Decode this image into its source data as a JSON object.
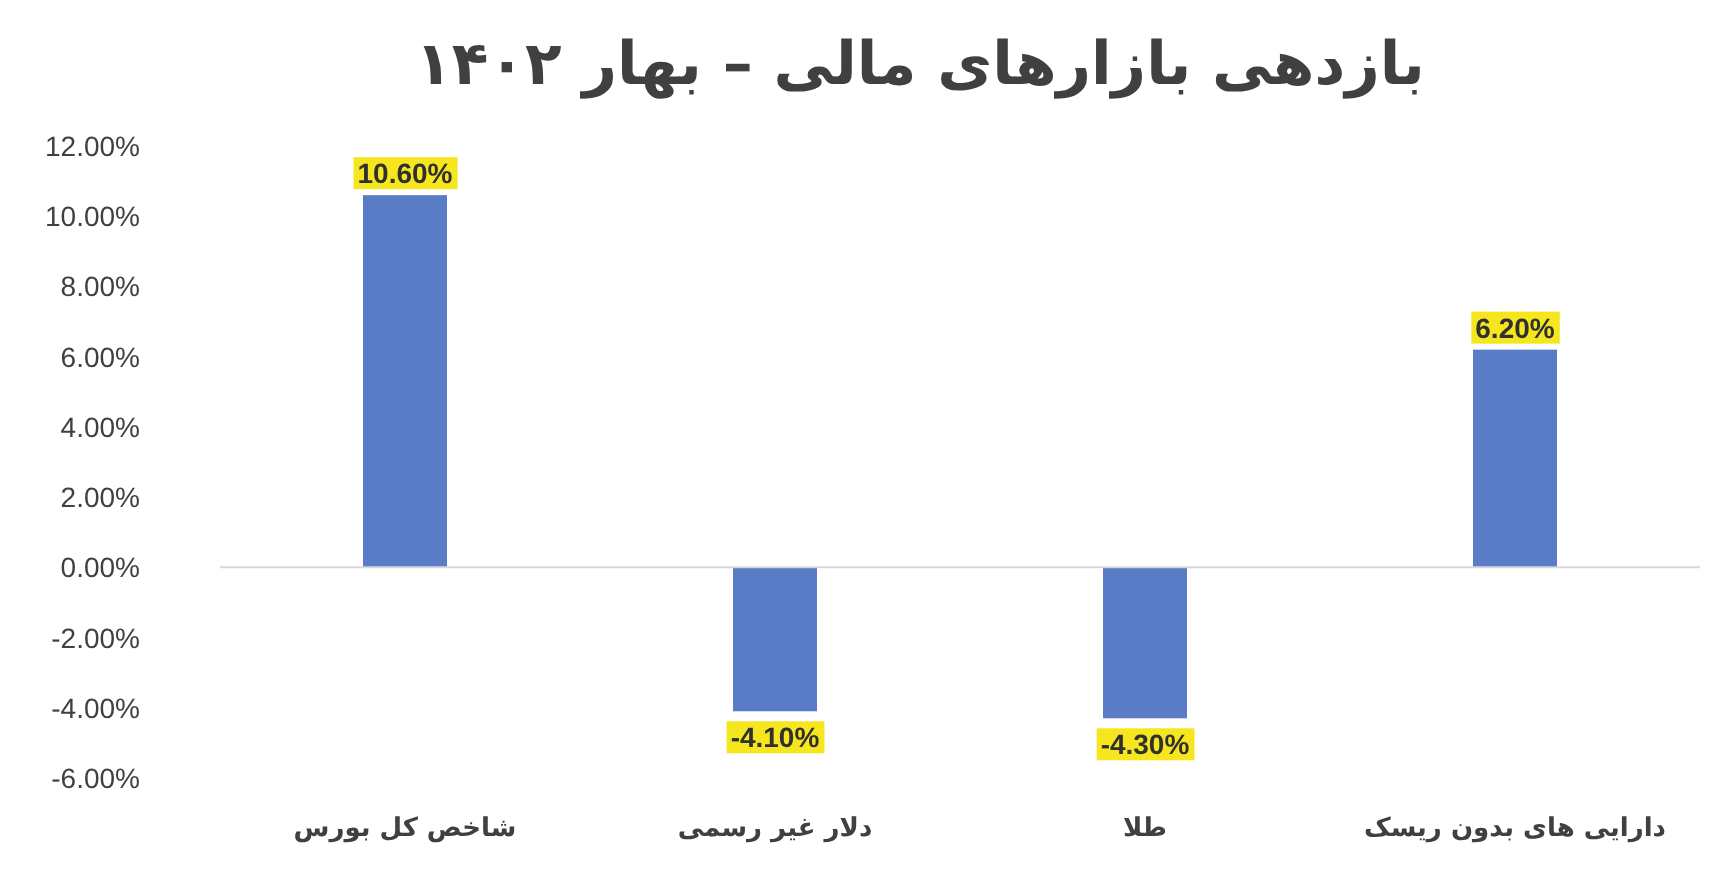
{
  "chart_data": {
    "type": "bar",
    "title": "بازدهی بازارهای مالی – بهار ۱۴۰۲",
    "categories": [
      "شاخص کل بورس",
      "دلار غیر رسمی",
      "طلا",
      "دارایی های بدون ریسک"
    ],
    "values": [
      10.6,
      -4.1,
      -4.3,
      6.2
    ],
    "value_labels": [
      "10.60%",
      "-4.10%",
      "-4.30%",
      "6.20%"
    ],
    "color": "#5a7bc6",
    "ylim": [
      -6,
      12
    ],
    "yticks": [
      {
        "value": -6,
        "label": "-6.00%"
      },
      {
        "value": -4,
        "label": "-4.00%"
      },
      {
        "value": -2,
        "label": "-2.00%"
      },
      {
        "value": 0,
        "label": "0.00%"
      },
      {
        "value": 2,
        "label": "2.00%"
      },
      {
        "value": 4,
        "label": "4.00%"
      },
      {
        "value": 6,
        "label": "6.00%"
      },
      {
        "value": 8,
        "label": "8.00%"
      },
      {
        "value": 10,
        "label": "10.00%"
      },
      {
        "value": 12,
        "label": "12.00%"
      }
    ]
  }
}
